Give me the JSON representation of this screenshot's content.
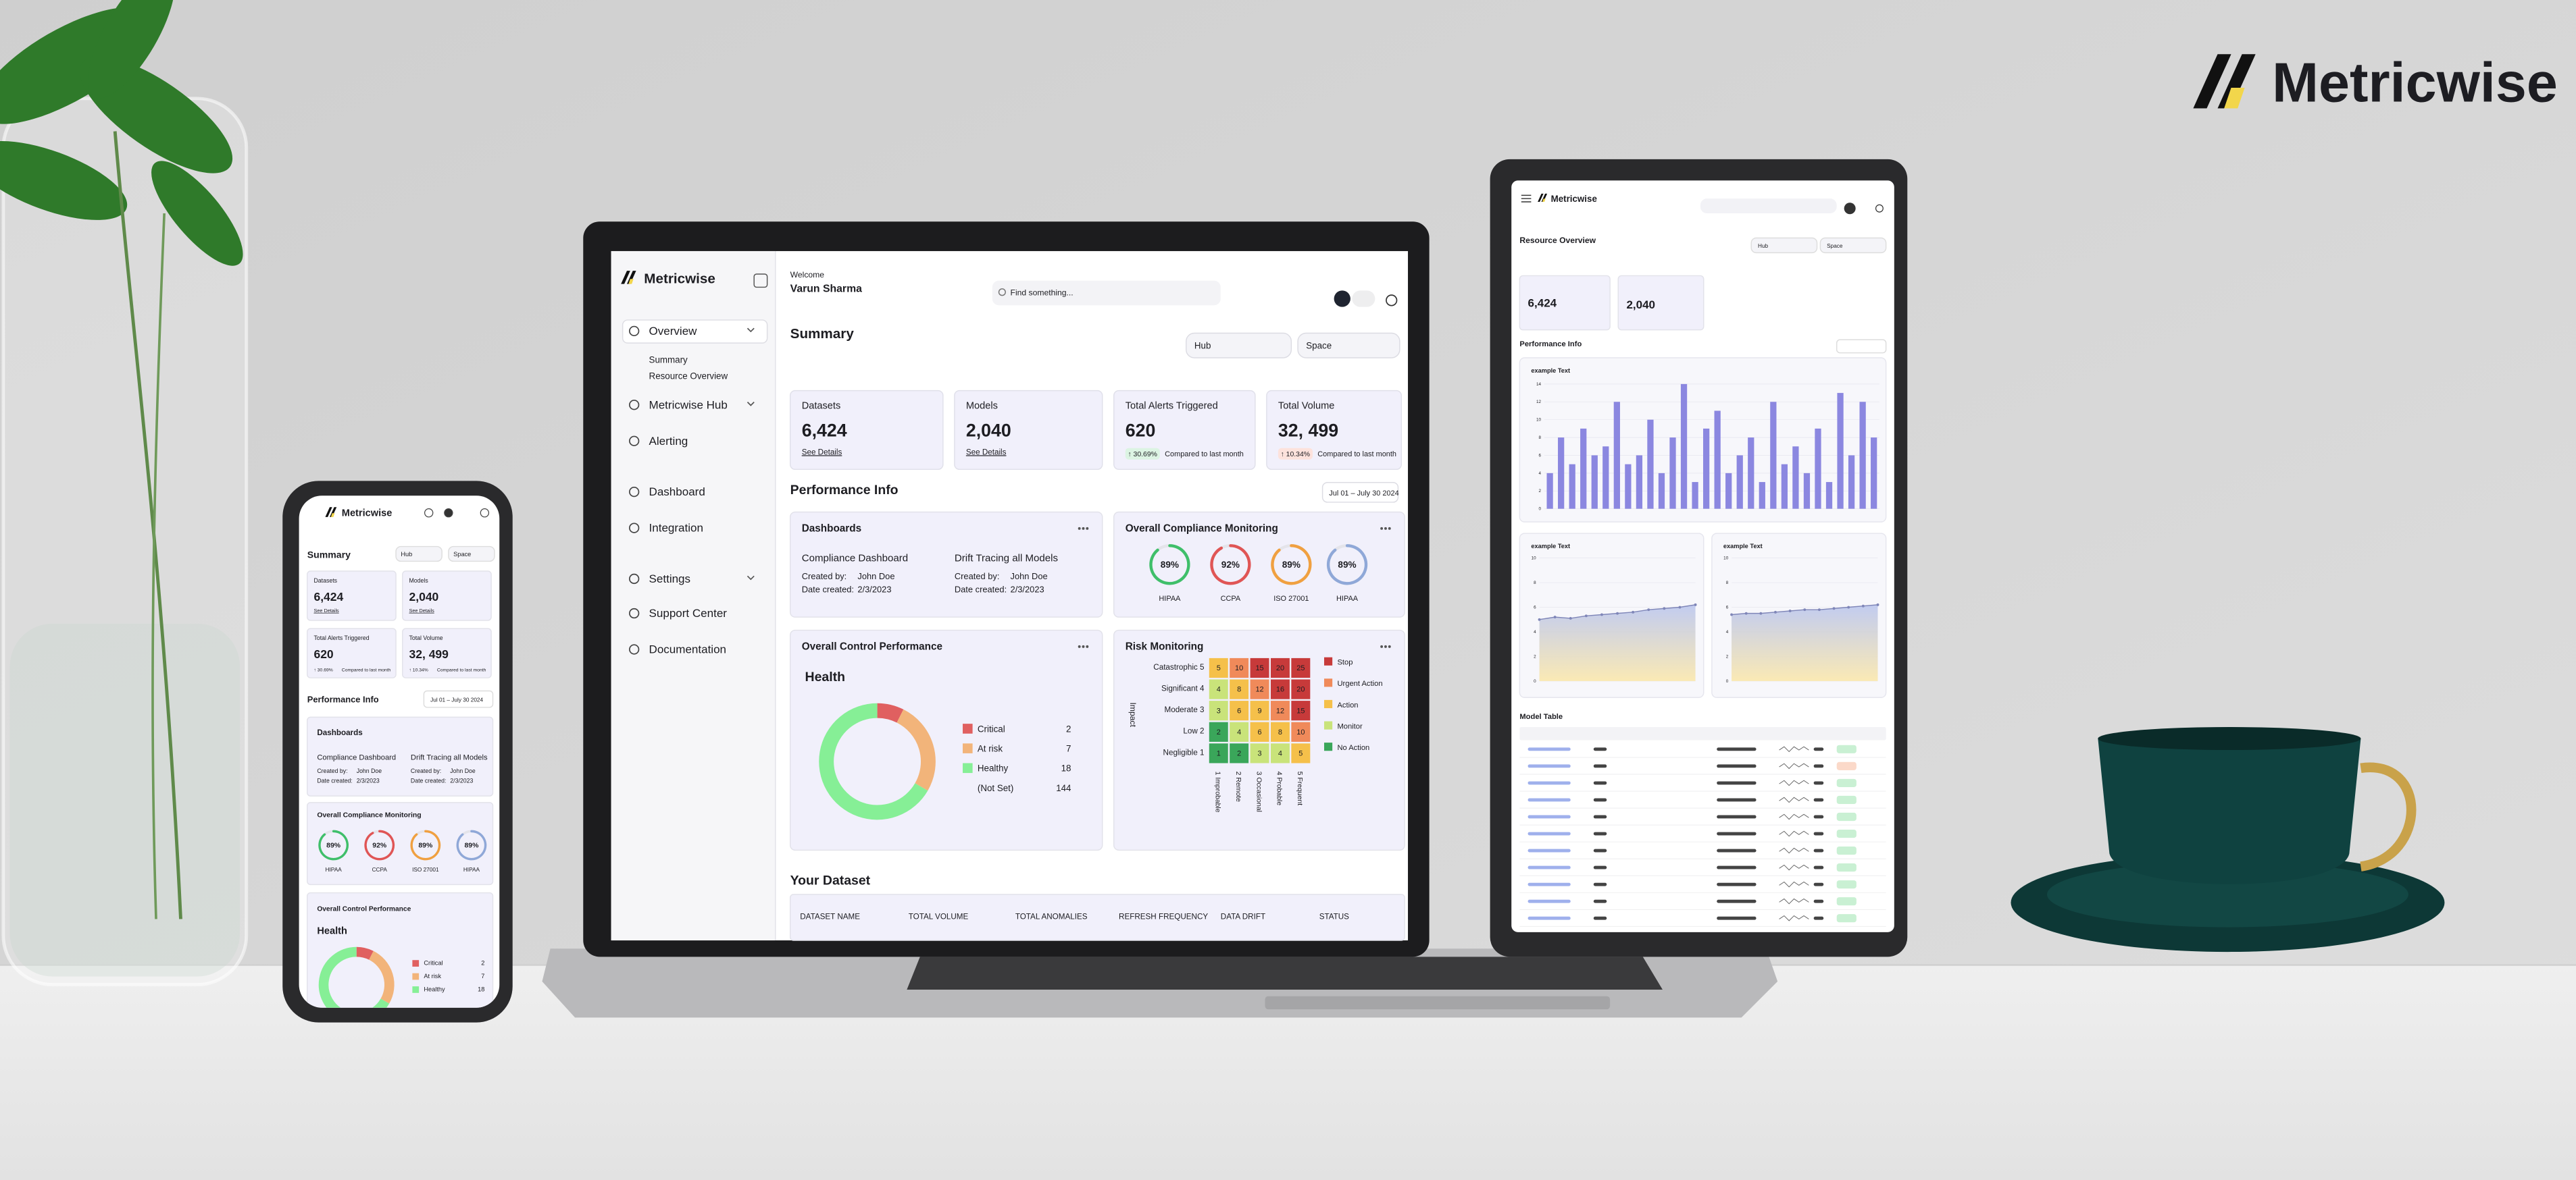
{
  "logo": {
    "name": "Metricwise"
  },
  "laptop": {
    "sidebar": {
      "logo": "Metricwise",
      "menu": [
        "Overview",
        "Metricwise Hub",
        "Alerting",
        "Dashboard",
        "Integration",
        "Settings",
        "Support Center",
        "Documentation"
      ],
      "submenu": [
        "Summary",
        "Resource Overview"
      ]
    },
    "header": {
      "welcome": "Welcome",
      "user": "Varun Sharma",
      "search": "Find something..."
    },
    "summary": {
      "title": "Summary",
      "filters": [
        "Hub",
        "Space"
      ],
      "cards": [
        {
          "label": "Datasets",
          "value": "6,424",
          "link": "See Details"
        },
        {
          "label": "Models",
          "value": "2,040",
          "link": "See Details"
        },
        {
          "label": "Total Alerts Triggered",
          "value": "620",
          "change": "↑ 30.69%",
          "note": "Compared to last month"
        },
        {
          "label": "Total Volume",
          "value": "32, 499",
          "change": "↑ 10.34%",
          "note": "Compared to last month"
        }
      ]
    },
    "performance": {
      "title": "Performance Info",
      "date_range": "Jul 01 – July 30 2024"
    },
    "dashboards": {
      "title": "Dashboards",
      "items": [
        {
          "name": "Compliance Dashboard",
          "created_by_label": "Created by:",
          "created_by": "John Doe",
          "date_label": "Date created:",
          "date": "2/3/2023"
        },
        {
          "name": "Drift Tracing all Models",
          "created_by_label": "Created by:",
          "created_by": "John Doe",
          "date_label": "Date created:",
          "date": "2/3/2023"
        }
      ]
    },
    "compliance": {
      "title": "Overall Compliance Monitoring",
      "labels": [
        "HIPAA",
        "CCPA",
        "ISO 27001",
        "HIPAA"
      ],
      "values": [
        89,
        92,
        89,
        89
      ],
      "value_labels": [
        "89%",
        "92%",
        "89%",
        "89%"
      ],
      "colors": [
        "#3fbf6a",
        "#e05555",
        "#f0a040",
        "#8fa8d8"
      ]
    },
    "control": {
      "title": "Overall Control Performance",
      "subtitle": "Health",
      "categories": [
        "Critical",
        "At risk",
        "Healthy"
      ],
      "values": [
        2,
        7,
        18
      ],
      "colors": [
        "#e06060",
        "#f2b47a",
        "#86ef96"
      ],
      "not_set": {
        "label": "(Not Set)",
        "value": 144
      }
    },
    "risk": {
      "title": "Risk Monitoring",
      "axis_label": "Impact",
      "rows": [
        "Catastrophic 5",
        "Significant 4",
        "Moderate 3",
        "Low 2",
        "Negligible 1"
      ],
      "columns": [
        "1 Improbable",
        "2 Remote",
        "3 Occasional",
        "4 Probable",
        "5 Frequent"
      ],
      "cells": [
        [
          5,
          10,
          15,
          20,
          25
        ],
        [
          4,
          8,
          12,
          16,
          20
        ],
        [
          3,
          6,
          9,
          12,
          15
        ],
        [
          2,
          4,
          6,
          8,
          10
        ],
        [
          1,
          2,
          3,
          4,
          5
        ]
      ],
      "legend": [
        "Stop",
        "Urgent Action",
        "Action",
        "Monitor",
        "No Action"
      ],
      "legend_colors": [
        "#c73a3a",
        "#f08a5a",
        "#f5c04a",
        "#c9e37a",
        "#3aa65a"
      ]
    },
    "dataset": {
      "title": "Your Dataset",
      "columns": [
        "DATASET NAME",
        "TOTAL VOLUME",
        "TOTAL ANOMALIES",
        "REFRESH FREQUENCY",
        "DATA DRIFT",
        "STATUS"
      ]
    }
  },
  "tablet": {
    "logo": "Metricwise",
    "title": "Resource Overview",
    "performance_title": "Performance Info",
    "table_title": "Model Table",
    "bar_chart": {
      "type": "bar",
      "title": "example Text",
      "values": [
        4,
        8,
        5,
        9,
        6,
        7,
        12,
        5,
        6,
        10,
        4,
        8,
        14,
        3,
        9,
        11,
        4,
        6,
        8,
        3,
        12,
        5,
        7,
        4,
        9,
        3,
        13,
        6,
        12,
        8
      ],
      "ylim": [
        0,
        14
      ],
      "yticks": [
        0,
        2,
        4,
        6,
        8,
        10,
        12,
        14
      ],
      "color": "#8b87e0"
    },
    "line_charts": [
      {
        "type": "area",
        "title": "example Text",
        "values": [
          5,
          5.2,
          5.1,
          5.3,
          5.4,
          5.5,
          5.6,
          5.8,
          5.9,
          6,
          6.2
        ],
        "ylim": [
          0,
          10
        ],
        "yticks": [
          0,
          2,
          4,
          6,
          8,
          10
        ],
        "color": "#7f86b8"
      },
      {
        "type": "area",
        "title": "example Text",
        "values": [
          5.4,
          5.5,
          5.5,
          5.6,
          5.7,
          5.8,
          5.8,
          5.9,
          6,
          6.1,
          6.2
        ],
        "ylim": [
          0,
          10
        ],
        "yticks": [
          0,
          2,
          4,
          6,
          8,
          10
        ],
        "color": "#7f86b8"
      }
    ]
  }
}
